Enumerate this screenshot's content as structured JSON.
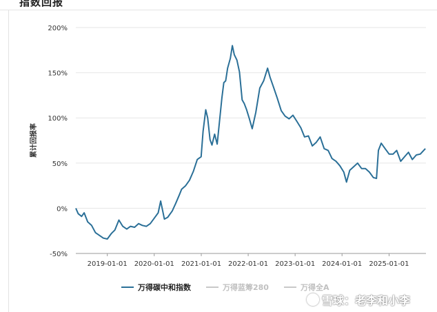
{
  "header": {
    "title": "指数回报"
  },
  "chart_data": {
    "type": "line",
    "title": "",
    "xlabel": "",
    "ylabel": "累计回报率",
    "ylim": [
      -50,
      200
    ],
    "yticks": [
      -50,
      0,
      50,
      100,
      150,
      200
    ],
    "ytick_labels": [
      "-50%",
      "0%",
      "50%",
      "100%",
      "150%",
      "200%"
    ],
    "xlim": [
      "2018-05-01",
      "2025-10-15"
    ],
    "xticks": [
      "2019-01-01",
      "2020-01-01",
      "2021-01-01",
      "2022-01-01",
      "2023-01-01",
      "2024-01-01",
      "2025-01-01"
    ],
    "xtick_labels": [
      "2019-01-01",
      "2020-01-01",
      "2021-01-01",
      "2022-01-01",
      "2023-01-01",
      "2024-01-01",
      "2025-01-01"
    ],
    "grid": true,
    "legend_position": "bottom",
    "series": [
      {
        "name": "万得碳中和指数",
        "color": "#2a6f97",
        "points": [
          [
            "2018-05-01",
            0
          ],
          [
            "2018-05-20",
            -6
          ],
          [
            "2018-06-15",
            -9
          ],
          [
            "2018-07-05",
            -5
          ],
          [
            "2018-08-01",
            -15
          ],
          [
            "2018-09-01",
            -19
          ],
          [
            "2018-10-01",
            -27
          ],
          [
            "2018-11-01",
            -30
          ],
          [
            "2018-12-01",
            -33
          ],
          [
            "2019-01-01",
            -34
          ],
          [
            "2019-02-01",
            -28
          ],
          [
            "2019-03-01",
            -24
          ],
          [
            "2019-04-01",
            -13
          ],
          [
            "2019-05-01",
            -20
          ],
          [
            "2019-06-01",
            -23
          ],
          [
            "2019-07-01",
            -20
          ],
          [
            "2019-08-01",
            -21
          ],
          [
            "2019-09-01",
            -17
          ],
          [
            "2019-10-01",
            -19
          ],
          [
            "2019-11-01",
            -20
          ],
          [
            "2019-12-01",
            -17
          ],
          [
            "2020-01-01",
            -11
          ],
          [
            "2020-02-01",
            -5
          ],
          [
            "2020-02-20",
            8
          ],
          [
            "2020-03-20",
            -12
          ],
          [
            "2020-04-15",
            -10
          ],
          [
            "2020-05-20",
            -3
          ],
          [
            "2020-06-15",
            5
          ],
          [
            "2020-07-15",
            15
          ],
          [
            "2020-08-01",
            21
          ],
          [
            "2020-09-01",
            25
          ],
          [
            "2020-10-01",
            31
          ],
          [
            "2020-11-01",
            41
          ],
          [
            "2020-12-01",
            54
          ],
          [
            "2020-12-31",
            57
          ],
          [
            "2021-01-15",
            85
          ],
          [
            "2021-02-05",
            109
          ],
          [
            "2021-02-20",
            100
          ],
          [
            "2021-03-10",
            76
          ],
          [
            "2021-03-25",
            70
          ],
          [
            "2021-04-15",
            82
          ],
          [
            "2021-05-05",
            71
          ],
          [
            "2021-05-20",
            92
          ],
          [
            "2021-06-10",
            122
          ],
          [
            "2021-06-25",
            139
          ],
          [
            "2021-07-10",
            141
          ],
          [
            "2021-07-25",
            155
          ],
          [
            "2021-08-15",
            166
          ],
          [
            "2021-08-31",
            180
          ],
          [
            "2021-09-15",
            170
          ],
          [
            "2021-10-05",
            164
          ],
          [
            "2021-10-25",
            151
          ],
          [
            "2021-11-15",
            120
          ],
          [
            "2021-12-01",
            116
          ],
          [
            "2021-12-20",
            109
          ],
          [
            "2022-01-10",
            99
          ],
          [
            "2022-02-01",
            88
          ],
          [
            "2022-03-01",
            106
          ],
          [
            "2022-04-01",
            133
          ],
          [
            "2022-05-01",
            141
          ],
          [
            "2022-06-01",
            155
          ],
          [
            "2022-06-20",
            145
          ],
          [
            "2022-07-15",
            135
          ],
          [
            "2022-08-15",
            122
          ],
          [
            "2022-09-15",
            108
          ],
          [
            "2022-10-15",
            102
          ],
          [
            "2022-11-15",
            99
          ],
          [
            "2022-12-15",
            103
          ],
          [
            "2023-01-15",
            96
          ],
          [
            "2023-02-15",
            89
          ],
          [
            "2023-03-15",
            79
          ],
          [
            "2023-04-15",
            80
          ],
          [
            "2023-05-15",
            69
          ],
          [
            "2023-06-15",
            73
          ],
          [
            "2023-07-15",
            79
          ],
          [
            "2023-08-15",
            66
          ],
          [
            "2023-09-15",
            64
          ],
          [
            "2023-10-15",
            55
          ],
          [
            "2023-11-15",
            52
          ],
          [
            "2023-12-15",
            47
          ],
          [
            "2024-01-15",
            40
          ],
          [
            "2024-02-05",
            29
          ],
          [
            "2024-03-01",
            42
          ],
          [
            "2024-04-01",
            46
          ],
          [
            "2024-05-01",
            50
          ],
          [
            "2024-06-01",
            44
          ],
          [
            "2024-07-01",
            44
          ],
          [
            "2024-08-01",
            40
          ],
          [
            "2024-09-01",
            34
          ],
          [
            "2024-09-25",
            33
          ],
          [
            "2024-10-10",
            64
          ],
          [
            "2024-11-01",
            72
          ],
          [
            "2024-12-01",
            66
          ],
          [
            "2025-01-01",
            60
          ],
          [
            "2025-02-01",
            60
          ],
          [
            "2025-03-01",
            64
          ],
          [
            "2025-04-01",
            52
          ],
          [
            "2025-05-01",
            57
          ],
          [
            "2025-06-01",
            62
          ],
          [
            "2025-07-01",
            54
          ],
          [
            "2025-08-01",
            59
          ],
          [
            "2025-09-01",
            60
          ],
          [
            "2025-10-10",
            66
          ]
        ]
      }
    ],
    "legend": [
      {
        "label": "万得碳中和指数",
        "color": "#2a6f97",
        "active": true
      },
      {
        "label": "万得蓝筹280",
        "color": "#c8c8c8",
        "active": false
      },
      {
        "label": "万得全A",
        "color": "#c8c8c8",
        "active": false
      }
    ]
  },
  "watermark": {
    "text": "雪球：老李和小李"
  }
}
